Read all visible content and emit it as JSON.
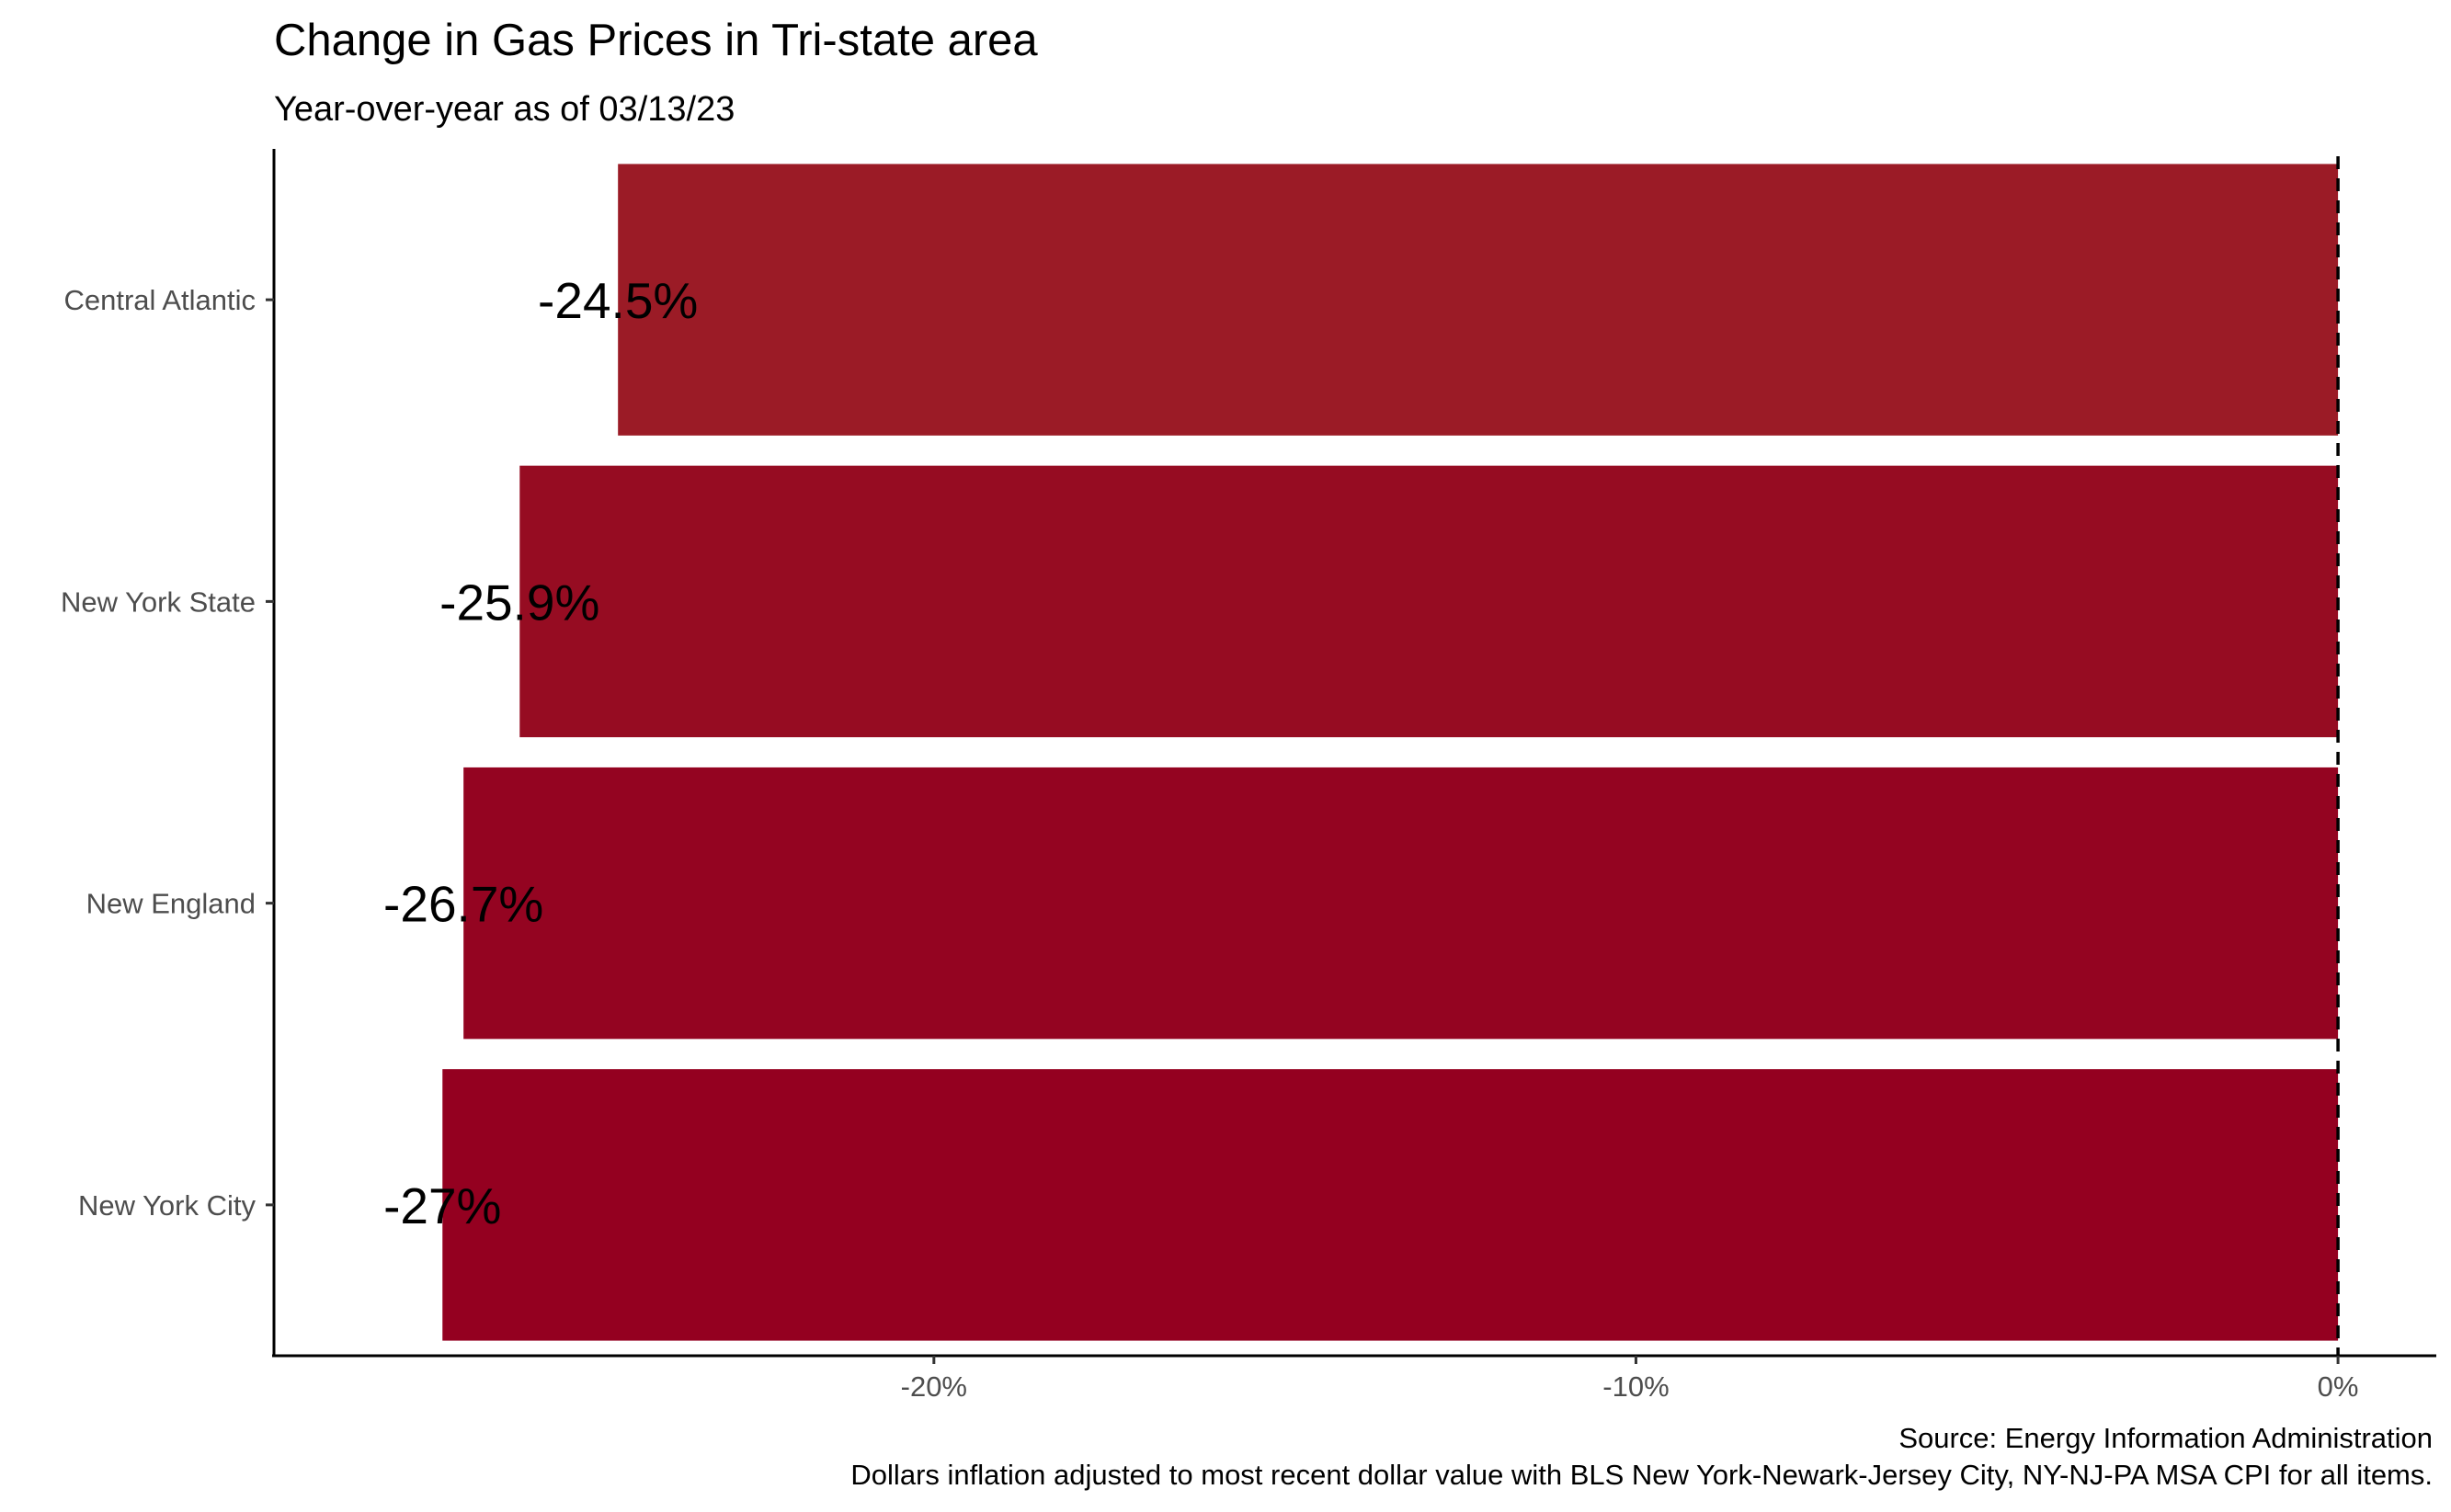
{
  "chart_data": {
    "type": "bar",
    "orientation": "horizontal",
    "title": "Change in Gas Prices in Tri-state area",
    "subtitle": "Year-over-year as of 03/13/23",
    "categories": [
      "Central Atlantic",
      "New York State",
      "New England",
      "New York City"
    ],
    "values": [
      -24.5,
      -25.9,
      -26.7,
      -27.0
    ],
    "data_labels": [
      "-24.5%",
      "-25.9%",
      "-26.7%",
      "-27%"
    ],
    "bar_colors": [
      "#9b1b26",
      "#960c22",
      "#940421",
      "#940020"
    ],
    "x_ticks": [
      {
        "value": -20,
        "label": "-20%"
      },
      {
        "value": -10,
        "label": "-10%"
      },
      {
        "value": 0,
        "label": "0%"
      }
    ],
    "xlim": [
      -29.4,
      1.4
    ],
    "reference_line": {
      "value": 0,
      "style": "dashed",
      "color": "#000000"
    },
    "grid": false,
    "legend": "none",
    "caption": [
      "Source: Energy Information Administration",
      "Dollars inflation adjusted to most recent dollar value with BLS New York-Newark-Jersey City, NY-NJ-PA MSA CPI for all items."
    ]
  }
}
